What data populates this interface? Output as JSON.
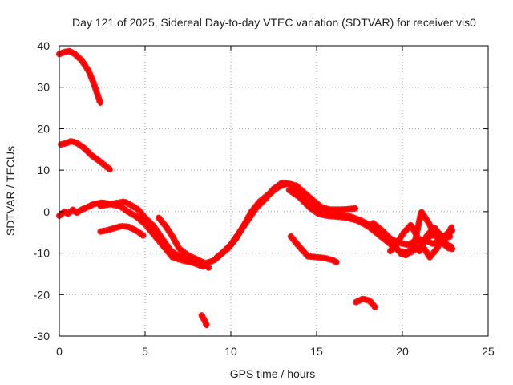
{
  "chart_data": {
    "type": "line",
    "title": "Day 121 of 2025, Sidereal Day-to-day VTEC variation (SDTVAR) for receiver vis0",
    "xlabel": "GPS time / hours",
    "ylabel": "SDTVAR / TECUs",
    "xlim": [
      0,
      25
    ],
    "ylim": [
      -30,
      40
    ],
    "xticks": [
      0,
      5,
      10,
      15,
      20,
      25
    ],
    "yticks": [
      -30,
      -20,
      -10,
      0,
      10,
      20,
      30,
      40
    ],
    "grid": true,
    "color": "#ff0000",
    "series": [
      {
        "name": "arc-a",
        "points": [
          [
            0,
            38
          ],
          [
            0.3,
            38.5
          ],
          [
            0.6,
            38.7
          ],
          [
            0.9,
            38
          ],
          [
            1.3,
            36.5
          ],
          [
            1.7,
            34
          ],
          [
            2.0,
            31
          ],
          [
            2.2,
            28.5
          ],
          [
            2.4,
            26
          ]
        ]
      },
      {
        "name": "arc-b",
        "points": [
          [
            0.1,
            16.2
          ],
          [
            0.4,
            16.5
          ],
          [
            0.7,
            17
          ],
          [
            1.0,
            16.6
          ],
          [
            1.4,
            15.5
          ],
          [
            1.9,
            13.5
          ],
          [
            2.4,
            12
          ],
          [
            3.0,
            10
          ]
        ]
      },
      {
        "name": "arc-c",
        "points": [
          [
            0,
            -1
          ],
          [
            0.3,
            0
          ],
          [
            0.5,
            -0.5
          ],
          [
            0.8,
            0.5
          ],
          [
            1.0,
            -0.3
          ],
          [
            1.3,
            0.5
          ],
          [
            1.6,
            1
          ],
          [
            2.0,
            1.8
          ],
          [
            2.5,
            2.2
          ],
          [
            3.0,
            1.8
          ],
          [
            3.5,
            2.2
          ],
          [
            3.8,
            2.4
          ],
          [
            4.2,
            1.5
          ],
          [
            4.6,
            0.5
          ],
          [
            5.0,
            -1.5
          ],
          [
            5.5,
            -3.5
          ],
          [
            6.0,
            -6.5
          ],
          [
            6.5,
            -9.5
          ],
          [
            7.0,
            -10.8
          ],
          [
            7.5,
            -11
          ],
          [
            8.0,
            -12
          ],
          [
            8.5,
            -12.8
          ],
          [
            8.7,
            -13.5
          ]
        ]
      },
      {
        "name": "arc-d",
        "points": [
          [
            2.4,
            1.4
          ],
          [
            3.0,
            1.8
          ],
          [
            3.6,
            1.2
          ],
          [
            4.0,
            0
          ],
          [
            4.5,
            -1.2
          ],
          [
            5.0,
            -3
          ],
          [
            5.5,
            -5.5
          ],
          [
            6.0,
            -8
          ],
          [
            6.6,
            -11
          ],
          [
            7.2,
            -11.8
          ],
          [
            7.8,
            -12.3
          ],
          [
            8.4,
            -13.3
          ]
        ]
      },
      {
        "name": "arc-e",
        "points": [
          [
            5.8,
            -1.5
          ],
          [
            6.2,
            -3.5
          ],
          [
            6.6,
            -6
          ],
          [
            7.0,
            -9
          ],
          [
            7.5,
            -10.5
          ],
          [
            8.0,
            -11.5
          ]
        ]
      },
      {
        "name": "arc-f",
        "points": [
          [
            2.4,
            -4.8
          ],
          [
            2.8,
            -4.5
          ],
          [
            3.2,
            -4
          ],
          [
            3.6,
            -3.5
          ],
          [
            4.0,
            -3.6
          ],
          [
            4.5,
            -4.6
          ],
          [
            4.9,
            -5.8
          ]
        ]
      },
      {
        "name": "arc-g",
        "points": [
          [
            8.3,
            -25
          ],
          [
            8.5,
            -26.5
          ],
          [
            8.6,
            -27.6
          ]
        ]
      },
      {
        "name": "arc-h",
        "points": [
          [
            8.0,
            -11.5
          ],
          [
            8.5,
            -12.5
          ],
          [
            9.0,
            -11.8
          ],
          [
            9.5,
            -10
          ],
          [
            10.0,
            -8
          ],
          [
            10.5,
            -5
          ],
          [
            11.0,
            -2
          ],
          [
            11.5,
            1
          ],
          [
            12.0,
            3
          ],
          [
            12.5,
            5.5
          ],
          [
            13.0,
            7
          ],
          [
            13.5,
            6.5
          ],
          [
            14.0,
            4
          ],
          [
            14.5,
            2
          ],
          [
            15.0,
            0.5
          ],
          [
            15.5,
            -0.3
          ],
          [
            16.0,
            -0.6
          ],
          [
            16.5,
            -0.8
          ],
          [
            17.0,
            -1.2
          ],
          [
            17.5,
            -2
          ],
          [
            18.0,
            -3
          ],
          [
            18.5,
            -4
          ],
          [
            19.0,
            -6
          ],
          [
            19.5,
            -8
          ],
          [
            20.0,
            -10.5
          ]
        ]
      },
      {
        "name": "arc-i",
        "points": [
          [
            9.2,
            -11
          ],
          [
            9.8,
            -9
          ],
          [
            10.3,
            -6.5
          ],
          [
            10.8,
            -3
          ],
          [
            11.2,
            0
          ],
          [
            11.7,
            2.5
          ],
          [
            12.3,
            4.5
          ],
          [
            12.8,
            6
          ],
          [
            13.3,
            6.8
          ],
          [
            13.8,
            6.3
          ],
          [
            14.3,
            4.5
          ],
          [
            14.8,
            2.7
          ],
          [
            15.3,
            1
          ],
          [
            15.8,
            0.5
          ],
          [
            16.3,
            0.5
          ],
          [
            16.8,
            0.6
          ],
          [
            17.3,
            0.8
          ]
        ]
      },
      {
        "name": "arc-j",
        "points": [
          [
            13.4,
            5.2
          ],
          [
            14.0,
            3.5
          ],
          [
            14.6,
            1
          ],
          [
            15.1,
            -0.5
          ],
          [
            15.6,
            -1
          ],
          [
            16.2,
            -1.2
          ],
          [
            16.8,
            -1.5
          ],
          [
            17.4,
            -2.2
          ],
          [
            18.0,
            -3.5
          ],
          [
            18.6,
            -5.5
          ],
          [
            19.2,
            -7.5
          ],
          [
            19.8,
            -9.5
          ],
          [
            20.4,
            -10
          ],
          [
            21.0,
            -8.5
          ],
          [
            21.5,
            -6
          ],
          [
            22.0,
            -5.5
          ]
        ]
      },
      {
        "name": "arc-k",
        "points": [
          [
            13.5,
            -6
          ],
          [
            14.0,
            -8.5
          ],
          [
            14.5,
            -10.8
          ],
          [
            15.0,
            -11
          ],
          [
            15.5,
            -11.2
          ],
          [
            16.0,
            -11.8
          ],
          [
            16.2,
            -12.3
          ]
        ]
      },
      {
        "name": "arc-l",
        "points": [
          [
            17.3,
            -21.8
          ],
          [
            17.7,
            -21
          ],
          [
            18.1,
            -21.5
          ],
          [
            18.4,
            -23
          ]
        ]
      },
      {
        "name": "arc-m",
        "points": [
          [
            19.3,
            -9.5
          ],
          [
            19.7,
            -7.5
          ],
          [
            20.1,
            -5
          ],
          [
            20.5,
            -3.2
          ],
          [
            20.8,
            -5.5
          ],
          [
            21.2,
            -8.5
          ],
          [
            21.6,
            -11
          ],
          [
            22.0,
            -9
          ],
          [
            22.4,
            -6
          ],
          [
            22.7,
            -5.5
          ],
          [
            22.9,
            -4.5
          ]
        ]
      },
      {
        "name": "arc-n",
        "points": [
          [
            20.2,
            -10.5
          ],
          [
            20.7,
            -8
          ],
          [
            21.1,
            0
          ],
          [
            21.5,
            -2.5
          ],
          [
            21.9,
            -5.5
          ],
          [
            22.3,
            -7.5
          ],
          [
            22.7,
            -8.8
          ],
          [
            22.9,
            -9
          ]
        ]
      },
      {
        "name": "arc-o",
        "points": [
          [
            21.0,
            -9.5
          ],
          [
            21.4,
            -6
          ],
          [
            21.8,
            -4
          ],
          [
            22.2,
            -5.5
          ],
          [
            22.6,
            -8
          ],
          [
            22.9,
            -8.5
          ]
        ]
      },
      {
        "name": "arc-p",
        "points": [
          [
            21.9,
            -4
          ],
          [
            22.3,
            -6.5
          ],
          [
            22.7,
            -5
          ],
          [
            22.9,
            -3.5
          ]
        ]
      },
      {
        "name": "arc-q",
        "points": [
          [
            18.3,
            -2.8
          ],
          [
            18.8,
            -4.5
          ],
          [
            19.3,
            -6.5
          ],
          [
            19.8,
            -7.5
          ],
          [
            20.3,
            -8
          ],
          [
            20.8,
            -7
          ],
          [
            21.3,
            -6.8
          ],
          [
            21.8,
            -7.8
          ],
          [
            22.3,
            -6.5
          ],
          [
            22.8,
            -6
          ]
        ]
      }
    ]
  }
}
